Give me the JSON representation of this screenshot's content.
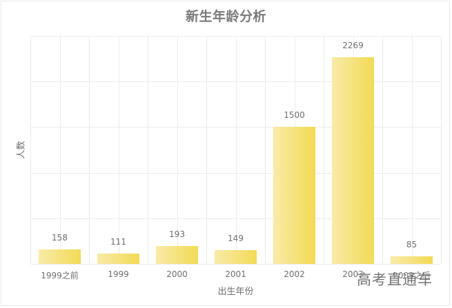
{
  "chart_data": {
    "type": "bar",
    "title": "新生年龄分析",
    "xlabel": "出生年份",
    "ylabel": "人数",
    "categories": [
      "1999之前",
      "1999",
      "2000",
      "2001",
      "2002",
      "2003",
      "2003之后"
    ],
    "values": [
      158,
      111,
      193,
      149,
      1500,
      2269,
      85
    ],
    "ylim": [
      0,
      2500
    ],
    "ytick_step": 500,
    "y_tick_labels_shown": false,
    "grid": true,
    "legend": null,
    "data_labels": true,
    "bar_gradient": [
      "#f8eba8",
      "#f3da55"
    ]
  },
  "watermark": "高考直通车"
}
